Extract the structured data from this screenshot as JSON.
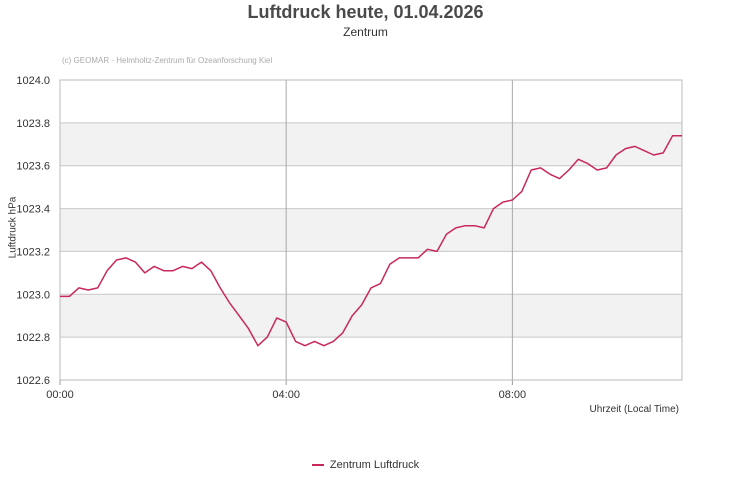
{
  "chart_data": {
    "type": "line",
    "title": "Luftdruck heute, 01.04.2026",
    "subtitle": "Zentrum",
    "credit": "(c) GEOMAR - Helmholtz-Zentrum für Ozeanforschung Kiel",
    "ylabel": "Luftdruck hPa",
    "xlabel": "Uhrzeit (Local Time)",
    "ylim": [
      1022.6,
      1024.0
    ],
    "yticks": [
      "1024.0",
      "1023.8",
      "1023.6",
      "1023.4",
      "1023.2",
      "1023.0",
      "1022.8",
      "1022.6"
    ],
    "xlim": [
      "00:00",
      "11:00"
    ],
    "xticks": [
      "00:00",
      "04:00",
      "08:00"
    ],
    "grid": true,
    "legend_position": "bottom",
    "series": [
      {
        "name": "Zentrum Luftdruck",
        "color": "#c8285a",
        "x": [
          "00:00",
          "00:10",
          "00:20",
          "00:30",
          "00:40",
          "00:50",
          "01:00",
          "01:10",
          "01:20",
          "01:30",
          "01:40",
          "01:50",
          "02:00",
          "02:10",
          "02:20",
          "02:30",
          "02:40",
          "02:50",
          "03:00",
          "03:10",
          "03:20",
          "03:30",
          "03:40",
          "03:50",
          "04:00",
          "04:10",
          "04:20",
          "04:30",
          "04:40",
          "04:50",
          "05:00",
          "05:10",
          "05:20",
          "05:30",
          "05:40",
          "05:50",
          "06:00",
          "06:10",
          "06:20",
          "06:30",
          "06:40",
          "06:50",
          "07:00",
          "07:10",
          "07:20",
          "07:30",
          "07:40",
          "07:50",
          "08:00",
          "08:10",
          "08:20",
          "08:30",
          "08:40",
          "08:50",
          "09:00",
          "09:10",
          "09:20",
          "09:30",
          "09:40",
          "09:50",
          "10:00",
          "10:10",
          "10:20",
          "10:30",
          "10:40",
          "10:50",
          "11:00"
        ],
        "values": [
          1022.99,
          1022.99,
          1023.03,
          1023.02,
          1023.03,
          1023.11,
          1023.16,
          1023.17,
          1023.15,
          1023.1,
          1023.13,
          1023.11,
          1023.11,
          1023.13,
          1023.12,
          1023.15,
          1023.11,
          1023.03,
          1022.96,
          1022.9,
          1022.84,
          1022.76,
          1022.8,
          1022.89,
          1022.87,
          1022.78,
          1022.76,
          1022.78,
          1022.76,
          1022.78,
          1022.82,
          1022.9,
          1022.95,
          1023.03,
          1023.05,
          1023.14,
          1023.17,
          1023.17,
          1023.17,
          1023.21,
          1023.2,
          1023.28,
          1023.31,
          1023.32,
          1023.32,
          1023.31,
          1023.4,
          1023.43,
          1023.44,
          1023.48,
          1023.58,
          1023.59,
          1023.56,
          1023.54,
          1023.58,
          1023.63,
          1023.61,
          1023.58,
          1023.59,
          1023.65,
          1023.68,
          1023.69,
          1023.67,
          1023.65,
          1023.66,
          1023.74,
          1023.74
        ]
      }
    ]
  }
}
